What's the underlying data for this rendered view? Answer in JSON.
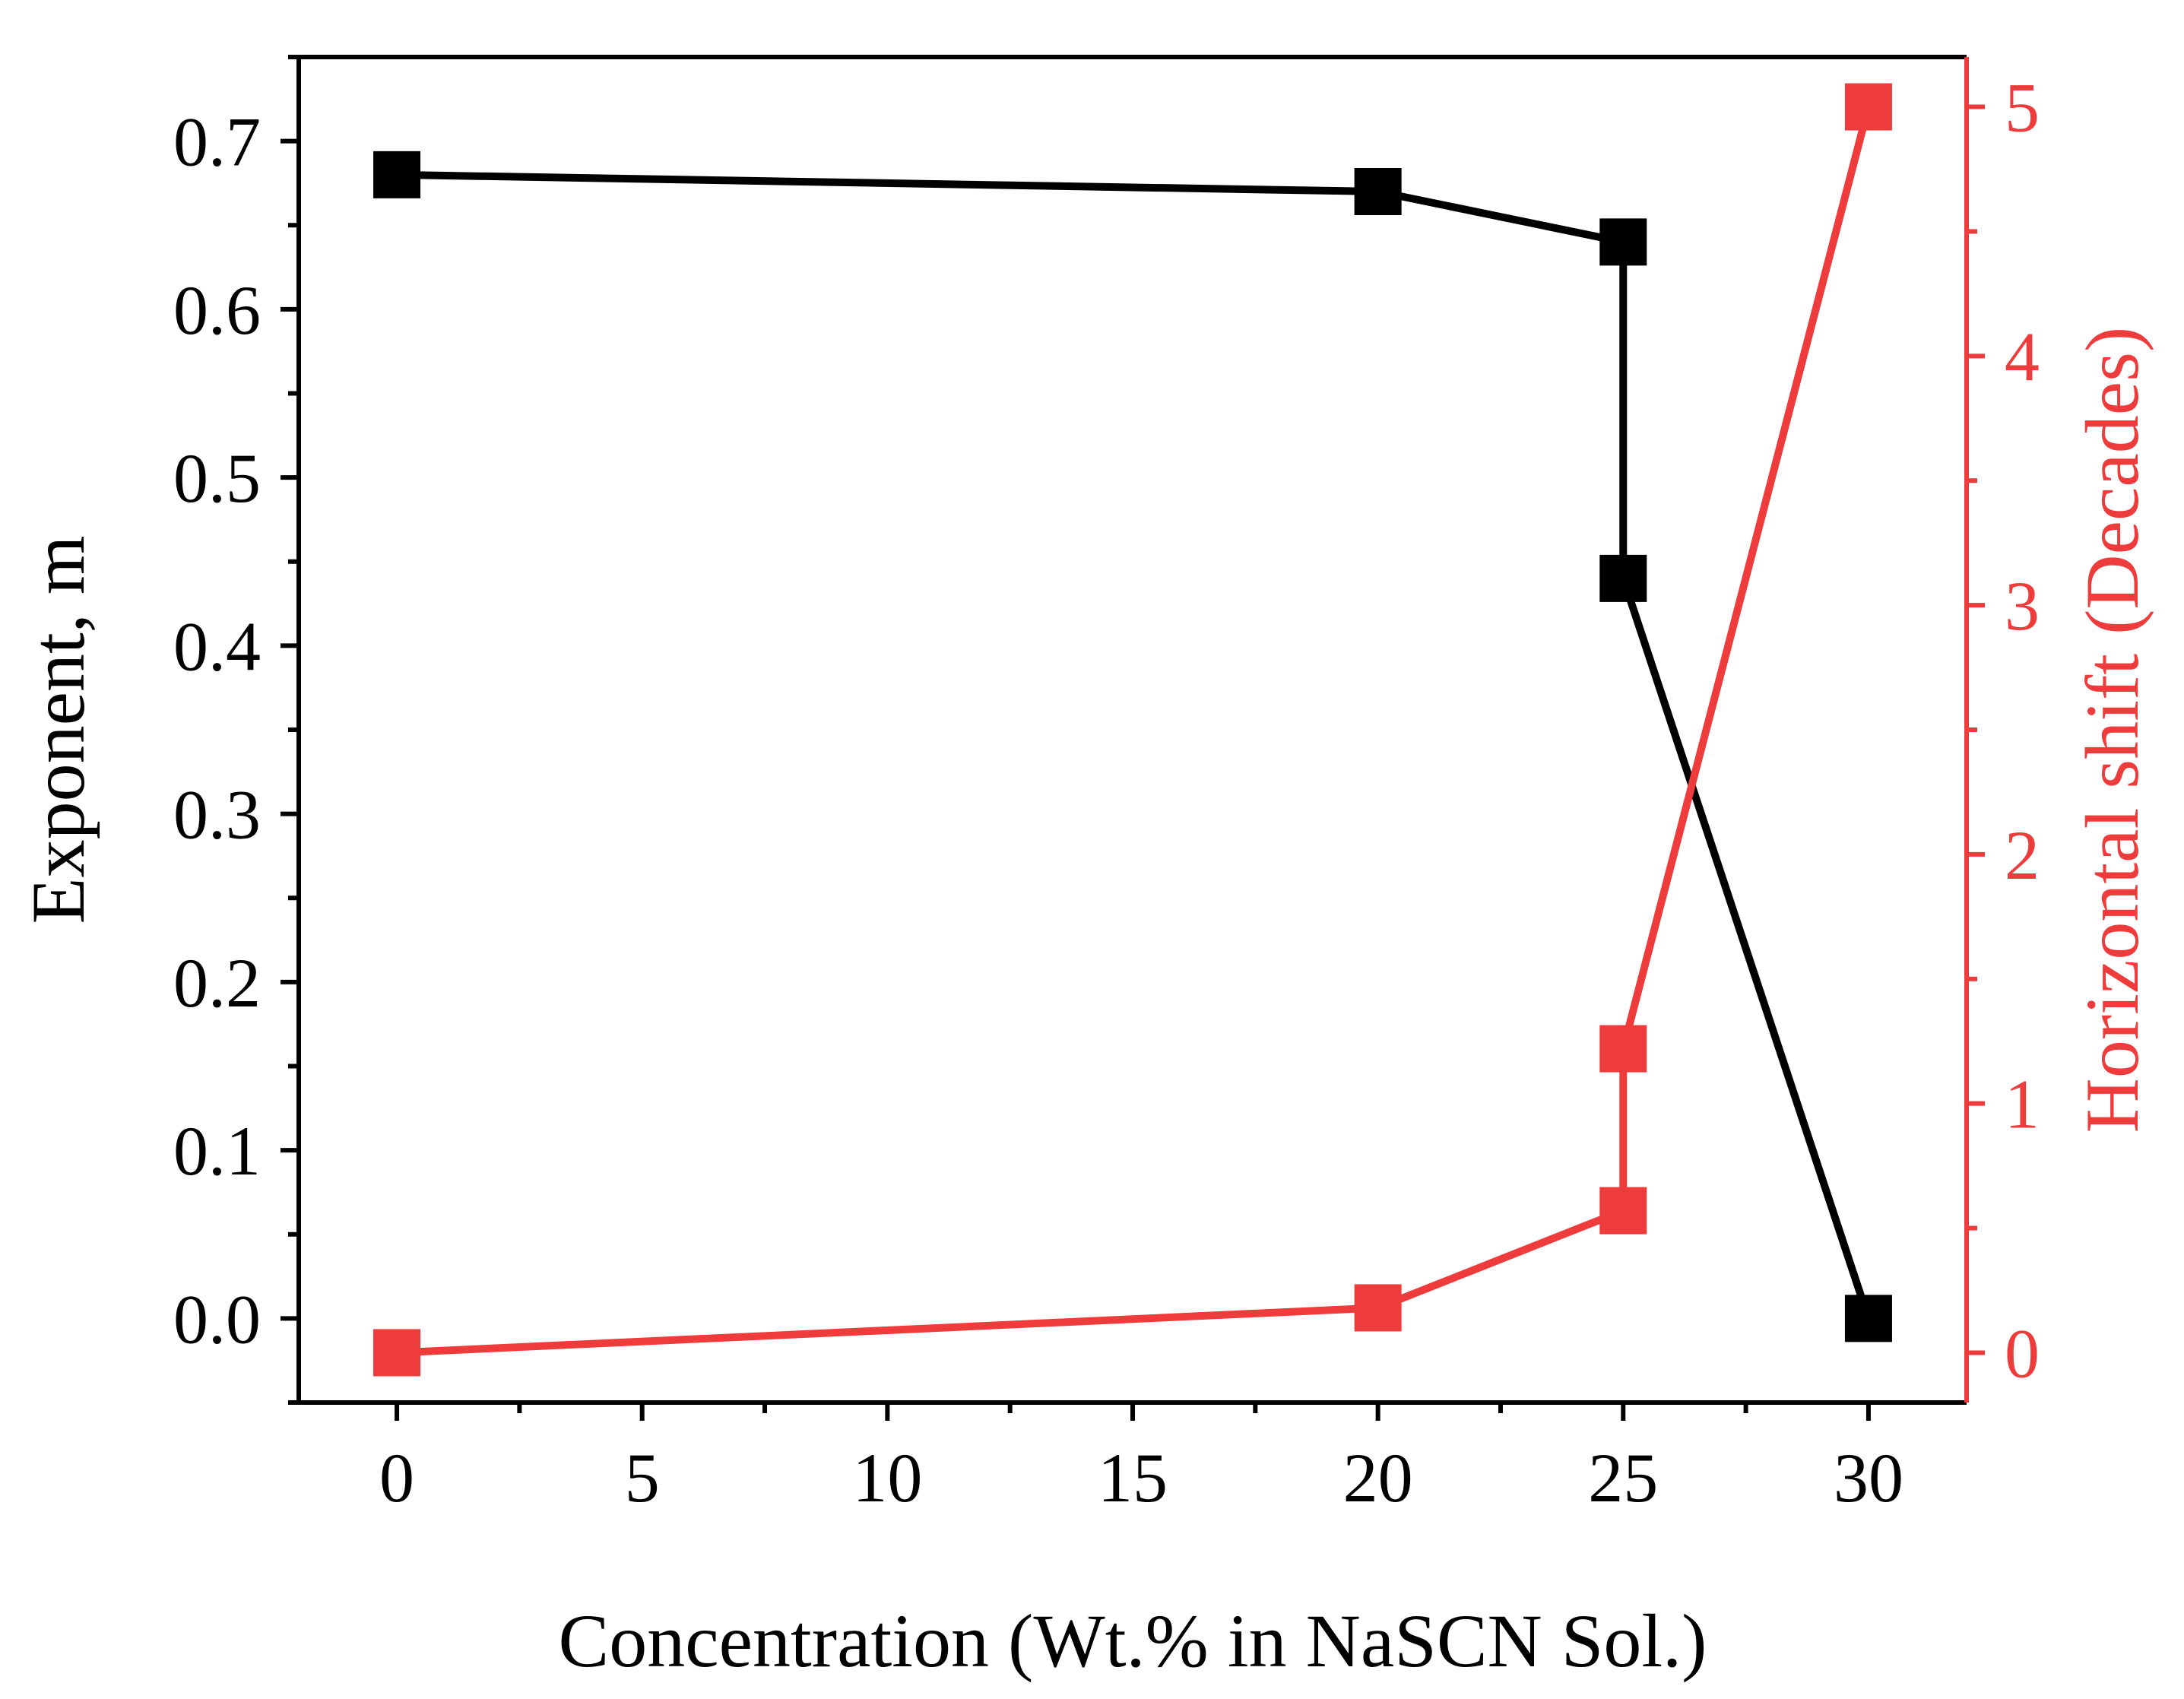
{
  "chart_data": {
    "type": "line",
    "xlabel": "Concentration (Wt.% in NaSCN Sol.)",
    "ylabel_left": "Exponent, m",
    "ylabel_right": "Horizontal shift (Decades)",
    "xlim": [
      -2,
      32
    ],
    "ylim_left": [
      -0.05,
      0.75
    ],
    "ylim_right": [
      -0.2,
      5.2
    ],
    "x_ticks": [
      0,
      5,
      10,
      15,
      20,
      25,
      30
    ],
    "x_tick_labels": [
      "0",
      "5",
      "10",
      "15",
      "20",
      "25",
      "30"
    ],
    "y_left_ticks": [
      0.0,
      0.1,
      0.2,
      0.3,
      0.4,
      0.5,
      0.6,
      0.7
    ],
    "y_left_tick_labels": [
      "0.0",
      "0.1",
      "0.2",
      "0.3",
      "0.4",
      "0.5",
      "0.6",
      "0.7"
    ],
    "y_right_ticks": [
      0,
      1,
      2,
      3,
      4,
      5
    ],
    "y_right_tick_labels": [
      "0",
      "1",
      "2",
      "3",
      "4",
      "5"
    ],
    "series": [
      {
        "name": "Exponent, m",
        "axis": "left",
        "color": "#000000",
        "marker": "square",
        "x": [
          0,
          20,
          25,
          25,
          30
        ],
        "y": [
          0.68,
          0.67,
          0.64,
          0.44,
          0.0
        ]
      },
      {
        "name": "Horizontal shift (Decades)",
        "axis": "right",
        "color": "#ee3b3b",
        "marker": "square",
        "x": [
          0,
          20,
          25,
          25,
          30
        ],
        "y": [
          0.0,
          0.18,
          0.57,
          1.22,
          5.0
        ]
      }
    ]
  }
}
